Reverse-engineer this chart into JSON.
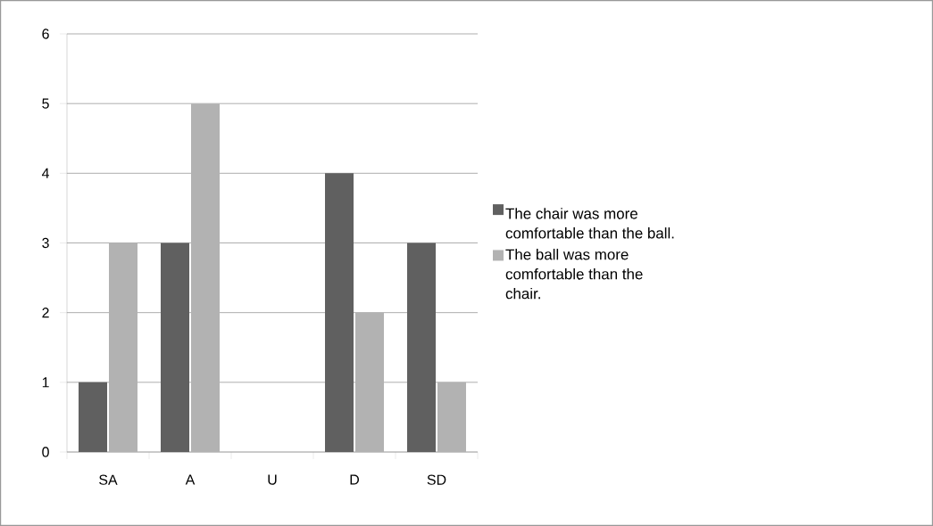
{
  "chart_data": {
    "type": "bar",
    "categories": [
      "SA",
      "A",
      "U",
      "D",
      "SD"
    ],
    "series": [
      {
        "name": "The chair was more comfortable than the ball.",
        "color": "#606060",
        "values": [
          1,
          3,
          0,
          4,
          3
        ]
      },
      {
        "name": "The ball was more comfortable than the chair.",
        "color": "#b2b2b2",
        "values": [
          3,
          5,
          0,
          2,
          1
        ]
      }
    ],
    "ylim": [
      0,
      6
    ],
    "yticks": [
      0,
      1,
      2,
      3,
      4,
      5,
      6
    ],
    "grid": "y",
    "legend": "right"
  }
}
